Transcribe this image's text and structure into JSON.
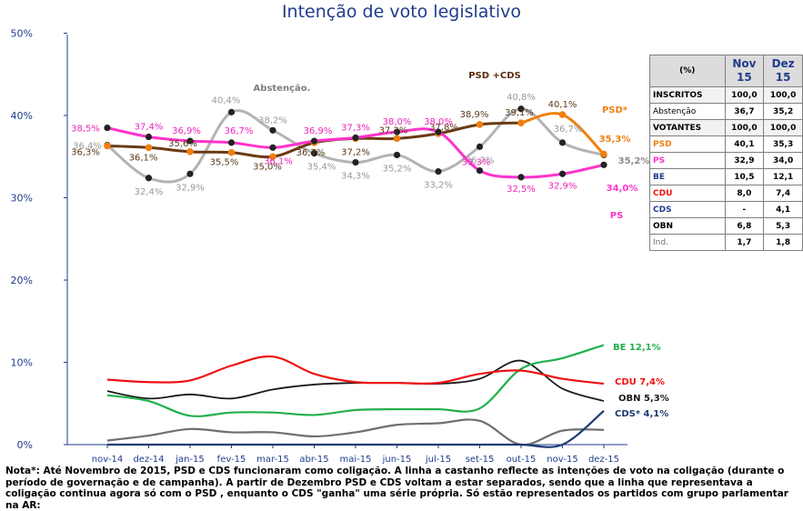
{
  "chart_data": {
    "type": "line",
    "title": "Intenção de voto legislativo",
    "categories": [
      "nov-14",
      "dez-14",
      "jan-15",
      "fev-15",
      "mar-15",
      "abr-15",
      "mai-15",
      "jun-15",
      "jul-15",
      "set-15",
      "out-15",
      "nov-15",
      "dez-15"
    ],
    "yticks": [
      "0%",
      "10%",
      "20%",
      "30%",
      "40%",
      "50%"
    ],
    "ylim": [
      0,
      50
    ],
    "series": [
      {
        "name": "Abstenção",
        "color": "#b3b3b3",
        "values": [
          36.4,
          32.4,
          32.9,
          40.4,
          38.2,
          35.4,
          34.3,
          35.2,
          33.2,
          36.2,
          40.8,
          36.7,
          35.2
        ],
        "labels": [
          "36,4%",
          "32,4%",
          "32,9%",
          "40,4%",
          "38,2%",
          "35,4%",
          "34,3%",
          "35,2%",
          "33,2%",
          "36,2%",
          "40,8%",
          "36,7%",
          "35,2%"
        ]
      },
      {
        "name": "PSD +CDS",
        "color": "#6b3a12",
        "values": [
          36.3,
          36.1,
          35.6,
          35.5,
          35.0,
          36.7,
          37.2,
          37.2,
          37.8,
          38.9,
          39.1,
          null,
          null
        ],
        "labels": [
          "36,3%",
          "36,1%",
          "35,6%",
          "35,5%",
          "35,0%",
          "36,7%",
          "37,2%",
          "37,2%",
          "37,8%",
          "38,9%",
          "39,1%",
          "",
          ""
        ]
      },
      {
        "name": "PSD*",
        "color": "#f07f10",
        "values": [
          null,
          null,
          null,
          null,
          null,
          null,
          null,
          null,
          null,
          null,
          null,
          40.1,
          35.3
        ],
        "labels": [
          "",
          "",
          "",
          "",
          "",
          "",
          "",
          "",
          "",
          "",
          "",
          "40,1%",
          "35,3%"
        ]
      },
      {
        "name": "PS",
        "color": "#ff33cc",
        "values": [
          38.5,
          37.4,
          36.9,
          36.7,
          36.1,
          36.9,
          37.3,
          38.0,
          38.0,
          33.3,
          32.5,
          32.9,
          34.0
        ],
        "labels": [
          "38,5%",
          "37,4%",
          "36,9%",
          "36,7%",
          "36,1%",
          "36,9%",
          "37,3%",
          "38,0%",
          "38,0%",
          "33,3%",
          "32,5%",
          "32,9%",
          "34,0%"
        ]
      },
      {
        "name": "BE",
        "color": "#22b04b",
        "values": [
          6.0,
          5.3,
          3.5,
          3.9,
          3.9,
          3.6,
          4.2,
          4.3,
          4.3,
          4.4,
          9.2,
          10.5,
          12.1
        ]
      },
      {
        "name": "CDU",
        "color": "#ee1111",
        "values": [
          7.9,
          7.6,
          7.8,
          9.6,
          10.7,
          8.6,
          7.6,
          7.5,
          7.5,
          8.6,
          9.0,
          8.0,
          7.4
        ]
      },
      {
        "name": "OBN",
        "color": "#1a1a1a",
        "values": [
          6.5,
          5.6,
          6.1,
          5.6,
          6.7,
          7.3,
          7.5,
          7.5,
          7.4,
          8.0,
          10.2,
          6.8,
          5.3
        ]
      },
      {
        "name": "CDS*",
        "color": "#1f3b73",
        "values": [
          0,
          0,
          0,
          0,
          0,
          0,
          0,
          0,
          0,
          0,
          0,
          0,
          4.1
        ]
      },
      {
        "name": "Ind.",
        "color": "#6f6f6f",
        "values": [
          0.5,
          1.1,
          1.9,
          1.5,
          1.5,
          1.0,
          1.5,
          2.4,
          2.6,
          2.9,
          0.0,
          1.7,
          1.8
        ]
      }
    ],
    "annotations": {
      "abstencao": "Abstenção.",
      "psdcds": "PSD +CDS",
      "psd": "PSD*",
      "psd_val": "35,3%",
      "abst_val": "35,2%",
      "ps_val": "34,0%",
      "ps": "PS",
      "be": "BE 12,1%",
      "cdu": "CDU 7,4%",
      "obn": "OBN 5,3%",
      "cds": "CDS* 4,1%"
    }
  },
  "table": {
    "header": {
      "unit": "(%)",
      "col1": "Nov",
      "col1b": "15",
      "col2": "Dez",
      "col2b": "15"
    },
    "rows": [
      {
        "name": "INSCRITOS",
        "nov": "100,0",
        "dez": "100,0",
        "color": "#000000",
        "cls": "vot"
      },
      {
        "name": "Abstenção",
        "nov": "36,7",
        "dez": "35,2",
        "color": "#000000",
        "cls": ""
      },
      {
        "name": "VOTANTES",
        "nov": "100,0",
        "dez": "100,0",
        "color": "#000000",
        "cls": "vot"
      },
      {
        "name": "PSD",
        "nov": "40,1",
        "dez": "35,3",
        "color": "#f07f10",
        "cls": ""
      },
      {
        "name": "PS",
        "nov": "32,9",
        "dez": "34,0",
        "color": "#ff33cc",
        "cls": ""
      },
      {
        "name": "BE",
        "nov": "10,5",
        "dez": "12,1",
        "color": "#1f3b8c",
        "cls": ""
      },
      {
        "name": "CDU",
        "nov": "8,0",
        "dez": "7,4",
        "color": "#ee1111",
        "cls": ""
      },
      {
        "name": "CDS",
        "nov": "-",
        "dez": "4,1",
        "color": "#1f3b8c",
        "cls": ""
      },
      {
        "name": "OBN",
        "nov": "6,8",
        "dez": "5,3",
        "color": "#000000",
        "cls": ""
      },
      {
        "name": "Ind.",
        "nov": "1,7",
        "dez": "1,8",
        "color": "#6f6f6f",
        "cls": ""
      }
    ]
  },
  "note": "Nota*: Até Novembro de 2015, PSD e CDS funcionaram como coligação. A linha a castanho reflecte as intenções de voto na coligação (durante o período de governação e de campanha). A partir de Dezembro PSD e CDS voltam a estar separados, sendo que a linha que representava a coligação continua agora só com o PSD , enquanto o CDS \"ganha\" uma série própria. Só estão representados os partidos com grupo parlamentar na AR:"
}
